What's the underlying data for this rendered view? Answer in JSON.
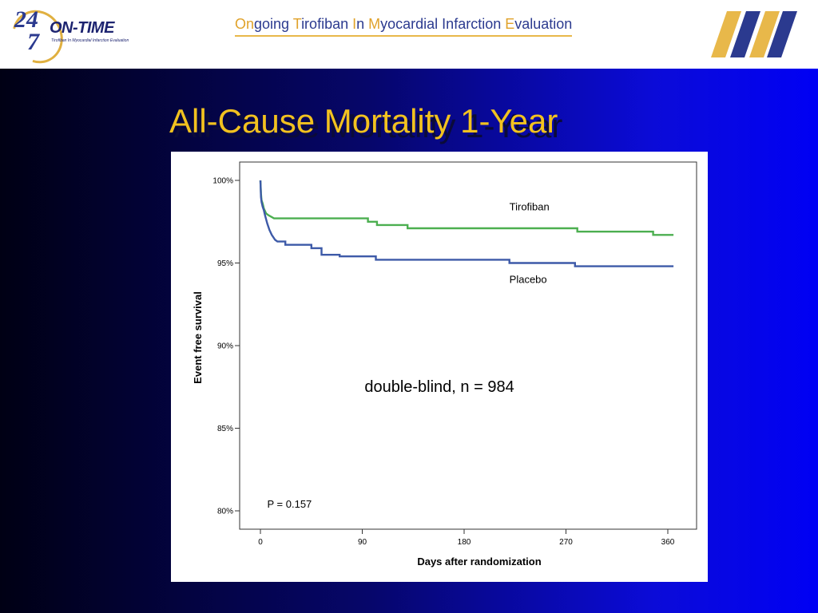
{
  "header": {
    "logo_number_top": "24",
    "logo_number_bottom": "7",
    "logo_word": "ON-TIME",
    "logo_tagline": "Tirofiban In Myocardial Infarction Evaluation",
    "subtitle_parts": [
      {
        "text": "On",
        "highlight": true
      },
      {
        "text": "going ",
        "highlight": false
      },
      {
        "text": "T",
        "highlight": true
      },
      {
        "text": "irofiban ",
        "highlight": false
      },
      {
        "text": "I",
        "highlight": true
      },
      {
        "text": "n ",
        "highlight": false
      },
      {
        "text": "M",
        "highlight": true
      },
      {
        "text": "yocardial Infarction ",
        "highlight": false
      },
      {
        "text": "E",
        "highlight": true
      },
      {
        "text": "valuation",
        "highlight": false
      }
    ]
  },
  "slide": {
    "title": "All-Cause Mortality 1-Year"
  },
  "colors": {
    "title": "#f2c21f",
    "tirofiban": "#4caf50",
    "placebo": "#3d5aa8",
    "accent": "#e0a22a",
    "navy": "#2b3a8f"
  },
  "chart_data": {
    "type": "line",
    "xlabel": "Days after randomization",
    "ylabel": "Event free survival",
    "xlim": [
      0,
      365
    ],
    "ylim": [
      80,
      100.6
    ],
    "x_ticks": [
      0,
      90,
      180,
      270,
      360
    ],
    "y_ticks": [
      80,
      85,
      90,
      95,
      100
    ],
    "y_tick_labels": [
      "80%",
      "85%",
      "90%",
      "95%",
      "100%"
    ],
    "series": [
      {
        "name": "Tirofiban",
        "color": "#4caf50",
        "points": [
          [
            0,
            100
          ],
          [
            0.5,
            99.2
          ],
          [
            1,
            98.8
          ],
          [
            2,
            98.6
          ],
          [
            3,
            98.3
          ],
          [
            5,
            98.0
          ],
          [
            7,
            97.9
          ],
          [
            12,
            97.7
          ],
          [
            95,
            97.7
          ],
          [
            95,
            97.5
          ],
          [
            103,
            97.5
          ],
          [
            103,
            97.3
          ],
          [
            130,
            97.3
          ],
          [
            130,
            97.1
          ],
          [
            280,
            97.1
          ],
          [
            280,
            96.9
          ],
          [
            347,
            96.9
          ],
          [
            347,
            96.7
          ],
          [
            365,
            96.7
          ]
        ]
      },
      {
        "name": "Placebo",
        "color": "#3d5aa8",
        "points": [
          [
            0,
            100
          ],
          [
            0.5,
            99.0
          ],
          [
            1,
            98.7
          ],
          [
            2,
            98.4
          ],
          [
            3,
            98.2
          ],
          [
            4,
            97.9
          ],
          [
            6,
            97.4
          ],
          [
            8,
            97.0
          ],
          [
            10,
            96.7
          ],
          [
            13,
            96.4
          ],
          [
            15,
            96.3
          ],
          [
            22,
            96.3
          ],
          [
            22,
            96.1
          ],
          [
            45,
            96.1
          ],
          [
            45,
            95.9
          ],
          [
            54,
            95.9
          ],
          [
            54,
            95.5
          ],
          [
            70,
            95.5
          ],
          [
            70,
            95.4
          ],
          [
            102,
            95.4
          ],
          [
            102,
            95.2
          ],
          [
            220,
            95.2
          ],
          [
            220,
            95.0
          ],
          [
            278,
            95.0
          ],
          [
            278,
            94.8
          ],
          [
            365,
            94.8
          ]
        ]
      }
    ],
    "annotations": [
      {
        "text": "Tirofiban",
        "x": 220,
        "y": 98.2
      },
      {
        "text": "Placebo",
        "x": 220,
        "y": 93.8
      },
      {
        "text": "double-blind, n = 984",
        "x": 92,
        "y": 87.2
      },
      {
        "text": "P = 0.157",
        "x": 6,
        "y": 80.2
      }
    ]
  }
}
